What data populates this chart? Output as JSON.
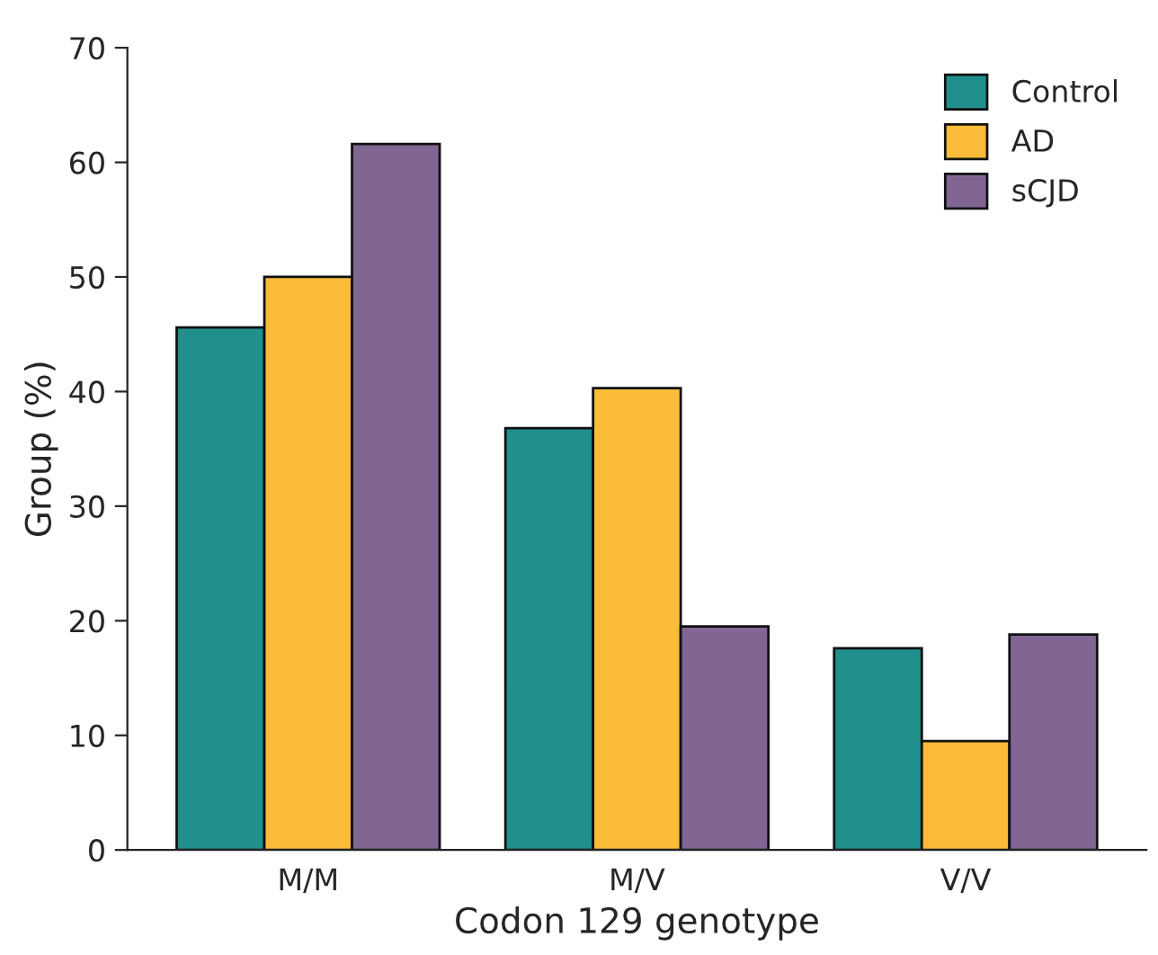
{
  "chart_data": {
    "type": "bar",
    "xlabel": "Codon 129 genotype",
    "ylabel": "Group (%)",
    "categories": [
      "M/M",
      "M/V",
      "V/V"
    ],
    "series": [
      {
        "name": "Control",
        "color": "#21908d",
        "values": [
          45.6,
          36.8,
          17.6
        ]
      },
      {
        "name": "AD",
        "color": "#fbbc3a",
        "values": [
          50,
          40.3,
          9.5
        ]
      },
      {
        "name": "sCJD",
        "color": "#816694",
        "values": [
          61.6,
          19.5,
          18.8
        ]
      }
    ],
    "ylim": [
      0,
      70
    ],
    "yticks": [
      0,
      10,
      20,
      30,
      40,
      50,
      60,
      70
    ],
    "grid": false,
    "legend": "top right"
  }
}
